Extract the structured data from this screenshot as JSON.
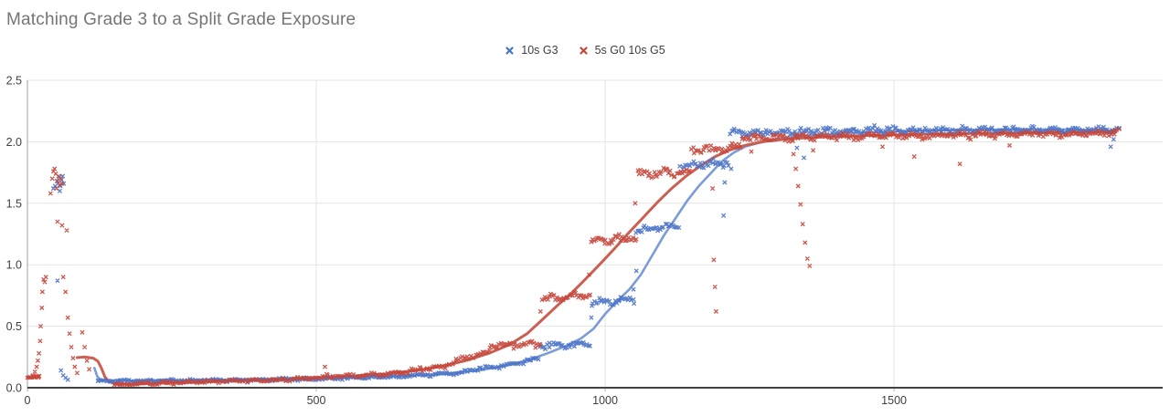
{
  "chart_data": {
    "type": "scatter",
    "title": "Matching Grade 3 to a Split Grade Exposure",
    "title_color": "#757575",
    "background": "#ffffff",
    "legend_position": "top-center",
    "grid": true,
    "grid_color": "#e4e4e4",
    "axis_line_color": "#424242",
    "y_axis_line_color": "#9aa0a6",
    "tick_color": "#b0b0b0",
    "label_color": "#3c4043",
    "axes": {
      "x": {
        "range": [
          0,
          1965
        ],
        "ticks": [
          0,
          500,
          1000,
          1500
        ],
        "labels": [
          "0",
          "500",
          "1000",
          "1500"
        ]
      },
      "y": {
        "range": [
          0,
          2.5
        ],
        "ticks": [
          0,
          0.5,
          1,
          1.5,
          2,
          2.5
        ],
        "labels": [
          "0.0",
          "0.5",
          "1.0",
          "1.5",
          "2.0",
          "2.5"
        ]
      }
    },
    "series": [
      {
        "name": "10s G3",
        "marker": "x",
        "marker_color": "#4a73c8",
        "line_color": "#7b9bd9",
        "trend": [
          [
            [
              116,
              0.16
            ],
            [
              121,
              0.09
            ],
            [
              127,
              0.062
            ],
            [
              160,
              0.058
            ],
            [
              250,
              0.06
            ],
            [
              350,
              0.065
            ],
            [
              450,
              0.072
            ],
            [
              550,
              0.082
            ],
            [
              650,
              0.095
            ],
            [
              720,
              0.112
            ],
            [
              780,
              0.14
            ],
            [
              830,
              0.18
            ],
            [
              870,
              0.23
            ],
            [
              900,
              0.28
            ],
            [
              930,
              0.335
            ],
            [
              958,
              0.4
            ],
            [
              980,
              0.48
            ],
            [
              1000,
              0.6
            ],
            [
              1020,
              0.7
            ],
            [
              1042,
              0.8
            ],
            [
              1062,
              0.92
            ],
            [
              1082,
              1.08
            ],
            [
              1102,
              1.24
            ],
            [
              1122,
              1.38
            ],
            [
              1142,
              1.52
            ],
            [
              1162,
              1.64
            ],
            [
              1182,
              1.74
            ],
            [
              1202,
              1.84
            ],
            [
              1222,
              1.91
            ],
            [
              1242,
              1.96
            ],
            [
              1265,
              1.99
            ],
            [
              1295,
              2.02
            ],
            [
              1350,
              2.05
            ],
            [
              1420,
              2.07
            ],
            [
              1500,
              2.085
            ],
            [
              1600,
              2.095
            ],
            [
              1700,
              2.1
            ],
            [
              1800,
              2.1
            ],
            [
              1882,
              2.09
            ]
          ]
        ],
        "scatter_bands": [
          [
            120,
            450,
            0.055,
            0.065,
            110,
            0.008
          ],
          [
            450,
            640,
            0.065,
            0.09,
            65,
            0.008
          ],
          [
            640,
            760,
            0.09,
            0.125,
            42,
            0.009
          ],
          [
            760,
            855,
            0.135,
            0.2,
            32,
            0.012
          ],
          [
            855,
            886,
            0.21,
            0.24,
            12,
            0.012
          ],
          [
            886,
            975,
            0.345,
            0.355,
            36,
            0.018
          ],
          [
            975,
            1052,
            0.69,
            0.72,
            30,
            0.02
          ],
          [
            1052,
            1128,
            1.28,
            1.32,
            30,
            0.022
          ],
          [
            1128,
            1215,
            1.8,
            1.83,
            34,
            0.022
          ],
          [
            1215,
            1500,
            2.07,
            2.1,
            110,
            0.02
          ],
          [
            1500,
            1890,
            2.09,
            2.1,
            150,
            0.018
          ]
        ],
        "scatter_points": [
          [
            45,
            1.62
          ],
          [
            48,
            1.64
          ],
          [
            51,
            1.68
          ],
          [
            53,
            1.66
          ],
          [
            55,
            1.71
          ],
          [
            56,
            1.6
          ],
          [
            57,
            1.64
          ],
          [
            59,
            1.69
          ],
          [
            61,
            1.72
          ],
          [
            63,
            1.66
          ],
          [
            52,
            0.87
          ],
          [
            58,
            0.14
          ],
          [
            62,
            0.1
          ],
          [
            66,
            0.08
          ],
          [
            70,
            0.065
          ],
          [
            976,
            0.57
          ],
          [
            1049,
            0.8
          ],
          [
            1054,
            0.95
          ],
          [
            1205,
            1.4
          ],
          [
            1207,
            1.67
          ],
          [
            1218,
            1.78
          ],
          [
            1332,
            1.95
          ],
          [
            1344,
            1.87
          ],
          [
            1875,
            1.96
          ],
          [
            1880,
            2.02
          ]
        ]
      },
      {
        "name": "5s G0 10s G5",
        "marker": "x",
        "marker_color": "#c5473c",
        "line_color": "#cb5f52",
        "trend": [
          [
            [
              0,
              0.085
            ],
            [
              12,
              0.086
            ],
            [
              20,
              0.092
            ]
          ],
          [
            [
              86,
              0.245
            ],
            [
              100,
              0.25
            ],
            [
              114,
              0.24
            ],
            [
              122,
              0.215
            ],
            [
              128,
              0.16
            ],
            [
              134,
              0.09
            ],
            [
              141,
              0.05
            ],
            [
              152,
              0.033
            ],
            [
              190,
              0.03
            ],
            [
              260,
              0.042
            ],
            [
              350,
              0.057
            ],
            [
              450,
              0.072
            ],
            [
              550,
              0.092
            ],
            [
              620,
              0.112
            ],
            [
              680,
              0.145
            ],
            [
              720,
              0.178
            ],
            [
              760,
              0.222
            ],
            [
              800,
              0.282
            ],
            [
              835,
              0.352
            ],
            [
              865,
              0.44
            ],
            [
              890,
              0.548
            ],
            [
              915,
              0.658
            ],
            [
              940,
              0.762
            ],
            [
              965,
              0.878
            ],
            [
              990,
              1.0
            ],
            [
              1015,
              1.125
            ],
            [
              1040,
              1.255
            ],
            [
              1065,
              1.38
            ],
            [
              1090,
              1.505
            ],
            [
              1115,
              1.62
            ],
            [
              1140,
              1.72
            ],
            [
              1165,
              1.805
            ],
            [
              1190,
              1.878
            ],
            [
              1215,
              1.932
            ],
            [
              1242,
              1.97
            ],
            [
              1272,
              2.0
            ],
            [
              1320,
              2.025
            ],
            [
              1390,
              2.042
            ],
            [
              1460,
              2.052
            ],
            [
              1560,
              2.062
            ],
            [
              1660,
              2.07
            ],
            [
              1770,
              2.075
            ],
            [
              1882,
              2.08
            ]
          ]
        ],
        "scatter_bands": [
          [
            0,
            22,
            0.085,
            0.09,
            14,
            0.008
          ],
          [
            150,
            450,
            0.028,
            0.065,
            105,
            0.008
          ],
          [
            450,
            640,
            0.07,
            0.115,
            65,
            0.009
          ],
          [
            640,
            725,
            0.12,
            0.18,
            30,
            0.012
          ],
          [
            725,
            800,
            0.2,
            0.29,
            26,
            0.015
          ],
          [
            800,
            890,
            0.34,
            0.355,
            36,
            0.018
          ],
          [
            890,
            975,
            0.73,
            0.75,
            34,
            0.02
          ],
          [
            975,
            1055,
            1.18,
            1.22,
            32,
            0.022
          ],
          [
            1055,
            1148,
            1.74,
            1.76,
            36,
            0.022
          ],
          [
            1148,
            1235,
            1.93,
            1.955,
            34,
            0.02
          ],
          [
            1235,
            1550,
            2.03,
            2.05,
            120,
            0.02
          ],
          [
            1550,
            1890,
            2.05,
            2.07,
            130,
            0.018
          ]
        ],
        "scatter_points": [
          [
            10,
            0.1
          ],
          [
            13,
            0.13
          ],
          [
            16,
            0.17
          ],
          [
            18,
            0.22
          ],
          [
            20,
            0.28
          ],
          [
            22,
            0.38
          ],
          [
            23,
            0.5
          ],
          [
            25,
            0.65
          ],
          [
            26,
            0.78
          ],
          [
            28,
            0.88
          ],
          [
            30,
            0.86
          ],
          [
            32,
            0.9
          ],
          [
            40,
            1.58
          ],
          [
            43,
            1.7
          ],
          [
            45,
            1.76
          ],
          [
            47,
            1.78
          ],
          [
            49,
            1.74
          ],
          [
            50,
            1.62
          ],
          [
            52,
            1.68
          ],
          [
            54,
            1.72
          ],
          [
            56,
            1.65
          ],
          [
            58,
            1.7
          ],
          [
            60,
            1.66
          ],
          [
            52,
            1.35
          ],
          [
            60,
            1.32
          ],
          [
            68,
            1.28
          ],
          [
            62,
            0.9
          ],
          [
            66,
            0.78
          ],
          [
            70,
            0.57
          ],
          [
            73,
            0.44
          ],
          [
            76,
            0.33
          ],
          [
            79,
            0.24
          ],
          [
            82,
            0.17
          ],
          [
            86,
            0.12
          ],
          [
            95,
            0.45
          ],
          [
            99,
            0.33
          ],
          [
            103,
            0.22
          ],
          [
            107,
            0.15
          ],
          [
            515,
            0.17
          ],
          [
            518,
            0.11
          ],
          [
            888,
            0.62
          ],
          [
            972,
            0.92
          ],
          [
            1052,
            1.5
          ],
          [
            1186,
            1.62
          ],
          [
            1188,
            1.04
          ],
          [
            1190,
            0.82
          ],
          [
            1192,
            0.62
          ],
          [
            1253,
            1.92
          ],
          [
            1326,
            1.9
          ],
          [
            1330,
            1.78
          ],
          [
            1334,
            1.64
          ],
          [
            1338,
            1.49
          ],
          [
            1342,
            1.33
          ],
          [
            1346,
            1.18
          ],
          [
            1350,
            1.05
          ],
          [
            1354,
            0.99
          ],
          [
            1360,
            1.93
          ],
          [
            1480,
            1.96
          ],
          [
            1535,
            1.88
          ],
          [
            1614,
            1.82
          ],
          [
            1700,
            1.97
          ]
        ]
      }
    ]
  }
}
